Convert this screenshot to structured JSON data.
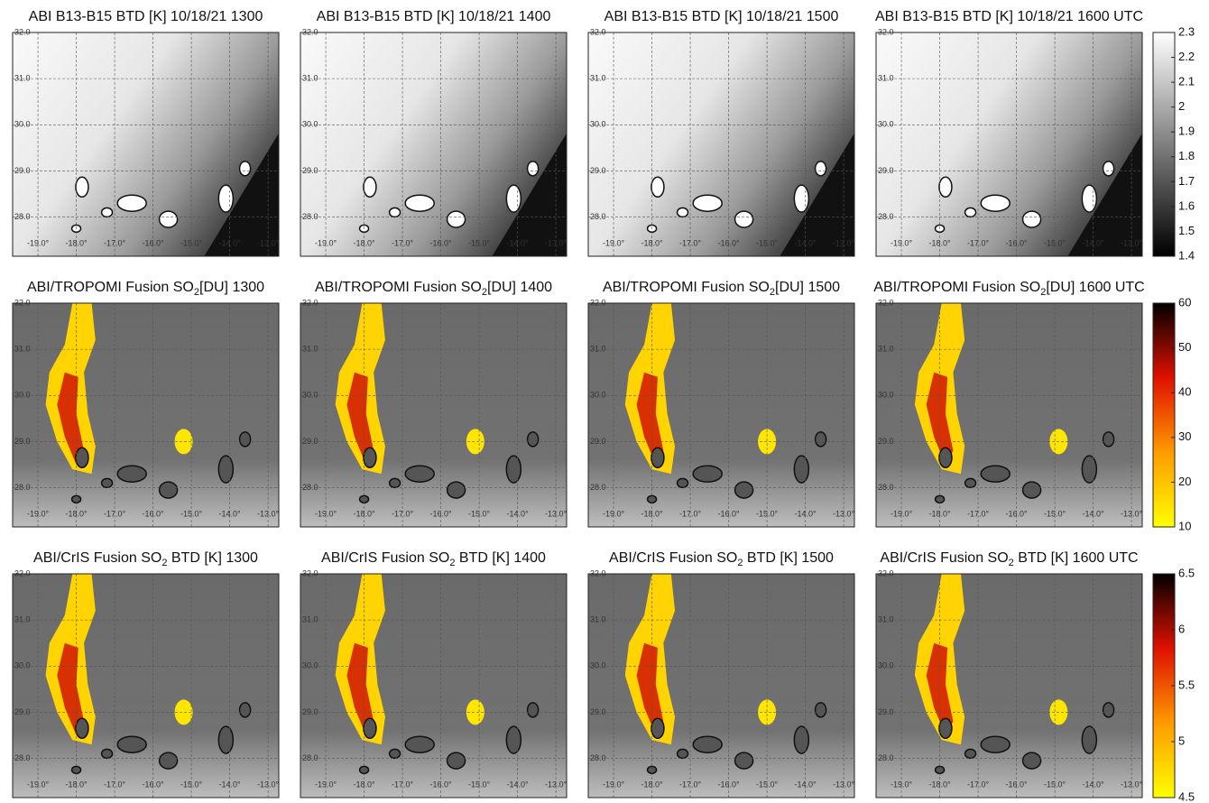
{
  "map": {
    "xlim": [
      -19.66,
      -12.72
    ],
    "ylim": [
      27.15,
      32.0
    ],
    "xticks": [
      {
        "value": -19,
        "label": "-19.0°"
      },
      {
        "value": -18,
        "label": "-18.0°"
      },
      {
        "value": -17,
        "label": "-17.0°"
      },
      {
        "value": -16,
        "label": "-16.0°"
      },
      {
        "value": -15,
        "label": "-15.0°"
      },
      {
        "value": -14,
        "label": "-14.0°"
      },
      {
        "value": -13,
        "label": "-13.0°"
      }
    ],
    "yticks": [
      {
        "value": 32,
        "label": "32.0"
      },
      {
        "value": 31,
        "label": "31.0"
      },
      {
        "value": 30,
        "label": "30.0"
      },
      {
        "value": 29,
        "label": "29.0"
      },
      {
        "value": 28,
        "label": "28.0"
      }
    ]
  },
  "rows": [
    {
      "panels": [
        {
          "title": {
            "pre": "ABI B13-B15 BTD [K] 10/18/21 1300"
          }
        },
        {
          "title": {
            "pre": "ABI B13-B15 BTD [K] 10/18/21 1400"
          }
        },
        {
          "title": {
            "pre": "ABI B13-B15 BTD [K] 10/18/21 1500"
          }
        },
        {
          "title": {
            "pre": "ABI B13-B15 BTD [K] 10/18/21 1600 UTC"
          }
        }
      ],
      "colorbar": {
        "lim": [
          1.4,
          2.3
        ],
        "ticks": [
          1.4,
          1.5,
          1.6,
          1.7,
          1.8,
          1.9,
          2,
          2.1,
          2.2,
          2.3
        ],
        "colors": [
          "#000000",
          "#ffffff"
        ]
      }
    },
    {
      "panels": [
        {
          "title": {
            "pre": "ABI/TROPOMI Fusion SO",
            "sub": "2",
            "post": "[DU]  1300"
          }
        },
        {
          "title": {
            "pre": "ABI/TROPOMI Fusion SO",
            "sub": "2",
            "post": "[DU]  1400"
          }
        },
        {
          "title": {
            "pre": "ABI/TROPOMI Fusion SO",
            "sub": "2",
            "post": "[DU]  1500"
          }
        },
        {
          "title": {
            "pre": "ABI/TROPOMI Fusion SO",
            "sub": "2",
            "post": "[DU]  1600 UTC"
          }
        }
      ],
      "colorbar": {
        "lim": [
          10,
          60
        ],
        "ticks": [
          10,
          20,
          30,
          40,
          50,
          60
        ],
        "colors": [
          "#ffff00",
          "#ff9a00",
          "#e01000",
          "#000000"
        ]
      }
    },
    {
      "panels": [
        {
          "title": {
            "pre": "ABI/CrIS Fusion SO",
            "sub": "2",
            "post": " BTD [K]  1300"
          }
        },
        {
          "title": {
            "pre": "ABI/CrIS Fusion SO",
            "sub": "2",
            "post": " BTD [K]  1400"
          }
        },
        {
          "title": {
            "pre": "ABI/CrIS Fusion SO",
            "sub": "2",
            "post": " BTD [K]  1500"
          }
        },
        {
          "title": {
            "pre": "ABI/CrIS Fusion SO",
            "sub": "2",
            "post": " BTD [K]  1600 UTC"
          }
        }
      ],
      "colorbar": {
        "lim": [
          4.5,
          6.5
        ],
        "ticks": [
          4.5,
          5,
          5.5,
          6,
          6.5
        ],
        "colors": [
          "#ffff00",
          "#ff9a00",
          "#e01000",
          "#000000"
        ]
      }
    }
  ]
}
